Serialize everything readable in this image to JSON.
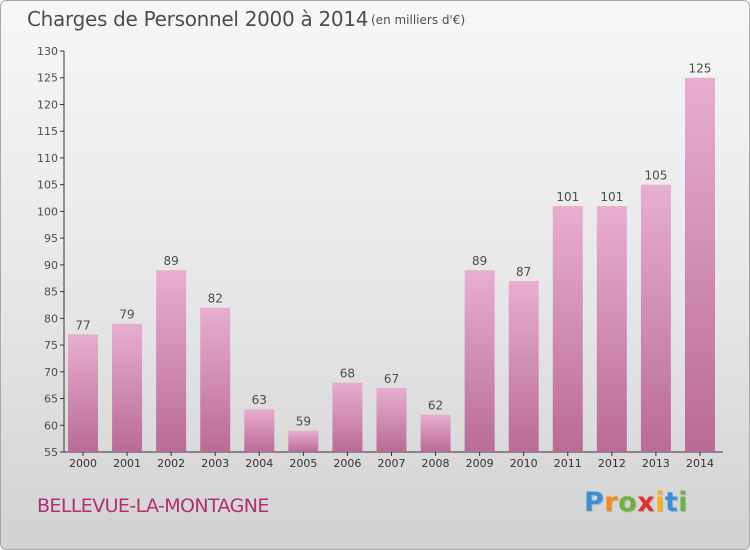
{
  "title": "Charges de Personnel 2000 à 2014",
  "subtitle": "(en milliers d'€)",
  "commune": "BELLEVUE-LA-MONTAGNE",
  "logo": {
    "letters": [
      "P",
      "r",
      "o",
      "x",
      "i",
      "t",
      "i"
    ],
    "colors": [
      "#3b8fd6",
      "#f08a1c",
      "#6cb33e",
      "#e0322c",
      "#f2b01c",
      "#3b8fd6",
      "#6cb33e"
    ]
  },
  "colors": {
    "bar_light": "#e8aed0",
    "bar_dark": "#b86b95",
    "text": "#4d4d4d"
  },
  "chart_data": {
    "type": "bar",
    "title": "Charges de Personnel 2000 à 2014",
    "subtitle": "(en milliers d'€)",
    "categories": [
      "2000",
      "2001",
      "2002",
      "2003",
      "2004",
      "2005",
      "2006",
      "2007",
      "2008",
      "2009",
      "2010",
      "2011",
      "2012",
      "2013",
      "2014"
    ],
    "values": [
      77,
      79,
      89,
      82,
      63,
      59,
      68,
      67,
      62,
      89,
      87,
      101,
      101,
      105,
      125
    ],
    "ylim": [
      55,
      130
    ],
    "yticks": [
      55,
      60,
      65,
      70,
      75,
      80,
      85,
      90,
      95,
      100,
      105,
      110,
      115,
      120,
      125,
      130
    ],
    "grid": false,
    "xlabel": "",
    "ylabel": ""
  }
}
